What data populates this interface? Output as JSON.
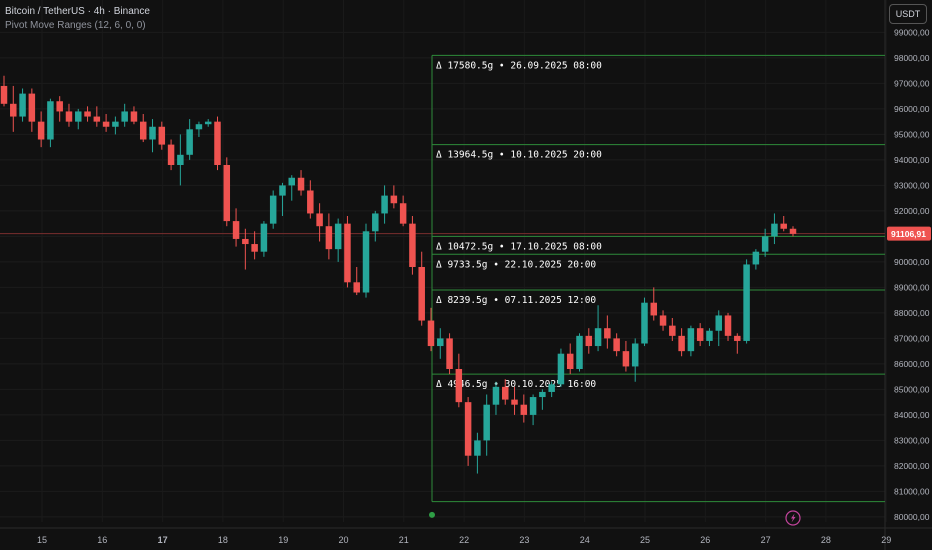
{
  "header": {
    "title": "Bitcoin / TetherUS · 4h · Binance",
    "indicator": "Pivot Move Ranges (12, 6, 0, 0)"
  },
  "currency_button": "USDT",
  "colors": {
    "background": "#111111",
    "up": "#26a69a",
    "down": "#ef5350",
    "range_line": "#2e8b3a",
    "range_text": "#ffffff",
    "axis_text": "#b2b5be",
    "price_line": "#7a2e2e",
    "price_tag": "#ef5350"
  },
  "chart_data": {
    "type": "candlestick",
    "title": "Bitcoin / TetherUS · 4h · Binance",
    "ylim": [
      79800,
      99800
    ],
    "y_ticks": [
      80000,
      81000,
      82000,
      83000,
      84000,
      85000,
      86000,
      87000,
      88000,
      89000,
      90000,
      91000,
      92000,
      93000,
      94000,
      95000,
      96000,
      97000,
      98000,
      99000
    ],
    "y_tick_labels": [
      "80000,00",
      "81000,00",
      "82000,00",
      "83000,00",
      "84000,00",
      "85000,00",
      "86000,00",
      "87000,00",
      "88000,00",
      "89000,00",
      "90000,00",
      "91000,00",
      "92000,00",
      "93000,00",
      "94000,00",
      "95000,00",
      "96000,00",
      "97000,00",
      "98000,00",
      "99000,00"
    ],
    "x_ticks": [
      "15",
      "16",
      "17",
      "18",
      "19",
      "20",
      "21",
      "22",
      "23",
      "24",
      "25",
      "26",
      "27",
      "28",
      "29"
    ],
    "x_tick_bold": "17",
    "last_price": 91106.91,
    "last_price_label": "91106,91",
    "candles": [
      [
        96900,
        97300,
        96100,
        96200
      ],
      [
        96200,
        96900,
        95100,
        95700
      ],
      [
        95700,
        96800,
        95500,
        96600
      ],
      [
        96600,
        96800,
        95100,
        95500
      ],
      [
        95500,
        95900,
        94500,
        94800
      ],
      [
        94800,
        96400,
        94500,
        96300
      ],
      [
        96300,
        96500,
        95500,
        95900
      ],
      [
        95900,
        96200,
        95300,
        95500
      ],
      [
        95500,
        96000,
        95200,
        95900
      ],
      [
        95900,
        96100,
        95500,
        95700
      ],
      [
        95700,
        96100,
        95300,
        95500
      ],
      [
        95500,
        95800,
        95100,
        95300
      ],
      [
        95300,
        95700,
        95000,
        95500
      ],
      [
        95500,
        96200,
        95300,
        95900
      ],
      [
        95900,
        96100,
        95400,
        95500
      ],
      [
        95500,
        95800,
        94700,
        94800
      ],
      [
        94800,
        95600,
        94300,
        95300
      ],
      [
        95300,
        95500,
        94400,
        94600
      ],
      [
        94600,
        94800,
        93600,
        93800
      ],
      [
        93800,
        95000,
        93000,
        94200
      ],
      [
        94200,
        95600,
        94000,
        95200
      ],
      [
        95200,
        95500,
        94900,
        95400
      ],
      [
        95400,
        95600,
        95300,
        95500
      ],
      [
        95500,
        95700,
        93600,
        93800
      ],
      [
        93800,
        94100,
        91400,
        91600
      ],
      [
        91600,
        92100,
        90600,
        90900
      ],
      [
        90900,
        91300,
        89700,
        90700
      ],
      [
        90700,
        91200,
        90100,
        90400
      ],
      [
        90400,
        91600,
        90200,
        91500
      ],
      [
        91500,
        92800,
        91300,
        92600
      ],
      [
        92600,
        93100,
        91800,
        93000
      ],
      [
        93000,
        93400,
        92400,
        93300
      ],
      [
        93300,
        93600,
        92600,
        92800
      ],
      [
        92800,
        93200,
        91700,
        91900
      ],
      [
        91900,
        92300,
        90800,
        91400
      ],
      [
        91400,
        91900,
        90100,
        90500
      ],
      [
        90500,
        91700,
        90000,
        91500
      ],
      [
        91500,
        91800,
        89000,
        89200
      ],
      [
        89200,
        89800,
        88700,
        88800
      ],
      [
        88800,
        91500,
        88600,
        91200
      ],
      [
        91200,
        92000,
        90800,
        91900
      ],
      [
        91900,
        93000,
        91500,
        92600
      ],
      [
        92600,
        93000,
        92100,
        92300
      ],
      [
        92300,
        92600,
        91400,
        91500
      ],
      [
        91500,
        91800,
        89500,
        89800
      ],
      [
        89800,
        90400,
        87500,
        87700
      ],
      [
        87700,
        88200,
        86500,
        86700
      ],
      [
        86700,
        87400,
        86200,
        87000
      ],
      [
        87000,
        87200,
        85600,
        85800
      ],
      [
        85800,
        86400,
        84300,
        84500
      ],
      [
        84500,
        84700,
        82000,
        82400
      ],
      [
        82400,
        83300,
        81700,
        83000
      ],
      [
        83000,
        84800,
        82400,
        84400
      ],
      [
        84400,
        85300,
        84000,
        85100
      ],
      [
        85100,
        85400,
        84400,
        84600
      ],
      [
        84600,
        85100,
        84000,
        84400
      ],
      [
        84400,
        84800,
        83700,
        84000
      ],
      [
        84000,
        84800,
        83600,
        84700
      ],
      [
        84700,
        85000,
        84200,
        84900
      ],
      [
        84900,
        85300,
        84700,
        85200
      ],
      [
        85200,
        86600,
        85100,
        86400
      ],
      [
        86400,
        86800,
        85600,
        85800
      ],
      [
        85800,
        87200,
        85700,
        87100
      ],
      [
        87100,
        87400,
        86400,
        86700
      ],
      [
        86700,
        88300,
        86500,
        87400
      ],
      [
        87400,
        87900,
        86600,
        87000
      ],
      [
        87000,
        87200,
        86300,
        86500
      ],
      [
        86500,
        86900,
        85700,
        85900
      ],
      [
        85900,
        87000,
        85300,
        86800
      ],
      [
        86800,
        88600,
        86700,
        88400
      ],
      [
        88400,
        89000,
        87700,
        87900
      ],
      [
        87900,
        88100,
        87300,
        87500
      ],
      [
        87500,
        87800,
        86900,
        87100
      ],
      [
        87100,
        87400,
        86300,
        86500
      ],
      [
        86500,
        87500,
        86300,
        87400
      ],
      [
        87400,
        87600,
        86700,
        86900
      ],
      [
        86900,
        87400,
        86700,
        87300
      ],
      [
        87300,
        88100,
        86700,
        87900
      ],
      [
        87900,
        88000,
        86900,
        87100
      ],
      [
        87100,
        87200,
        86400,
        86900
      ],
      [
        86900,
        90100,
        86800,
        89900
      ],
      [
        89900,
        90500,
        89700,
        90400
      ],
      [
        90400,
        91300,
        90200,
        91000
      ],
      [
        91000,
        91900,
        90700,
        91500
      ],
      [
        91500,
        91800,
        91200,
        91300
      ],
      [
        91300,
        91400,
        91000,
        91100
      ]
    ],
    "ranges": [
      {
        "label": "Δ 17580.5g • 26.09.2025 08:00",
        "price": 98100
      },
      {
        "label": "Δ 13964.5g • 10.10.2025 20:00",
        "price": 94600
      },
      {
        "label": "Δ 10472.5g • 17.10.2025 08:00",
        "price": 91000
      },
      {
        "label": "Δ 9733.5g • 22.10.2025 20:00",
        "price": 90300
      },
      {
        "label": "Δ 8239.5g • 07.11.2025 12:00",
        "price": 88900
      },
      {
        "label": "Δ 4946.5g • 30.10.2025 16:00",
        "price": 85600
      }
    ],
    "range_bottom": 80600,
    "pivot_point_price": 80000
  }
}
